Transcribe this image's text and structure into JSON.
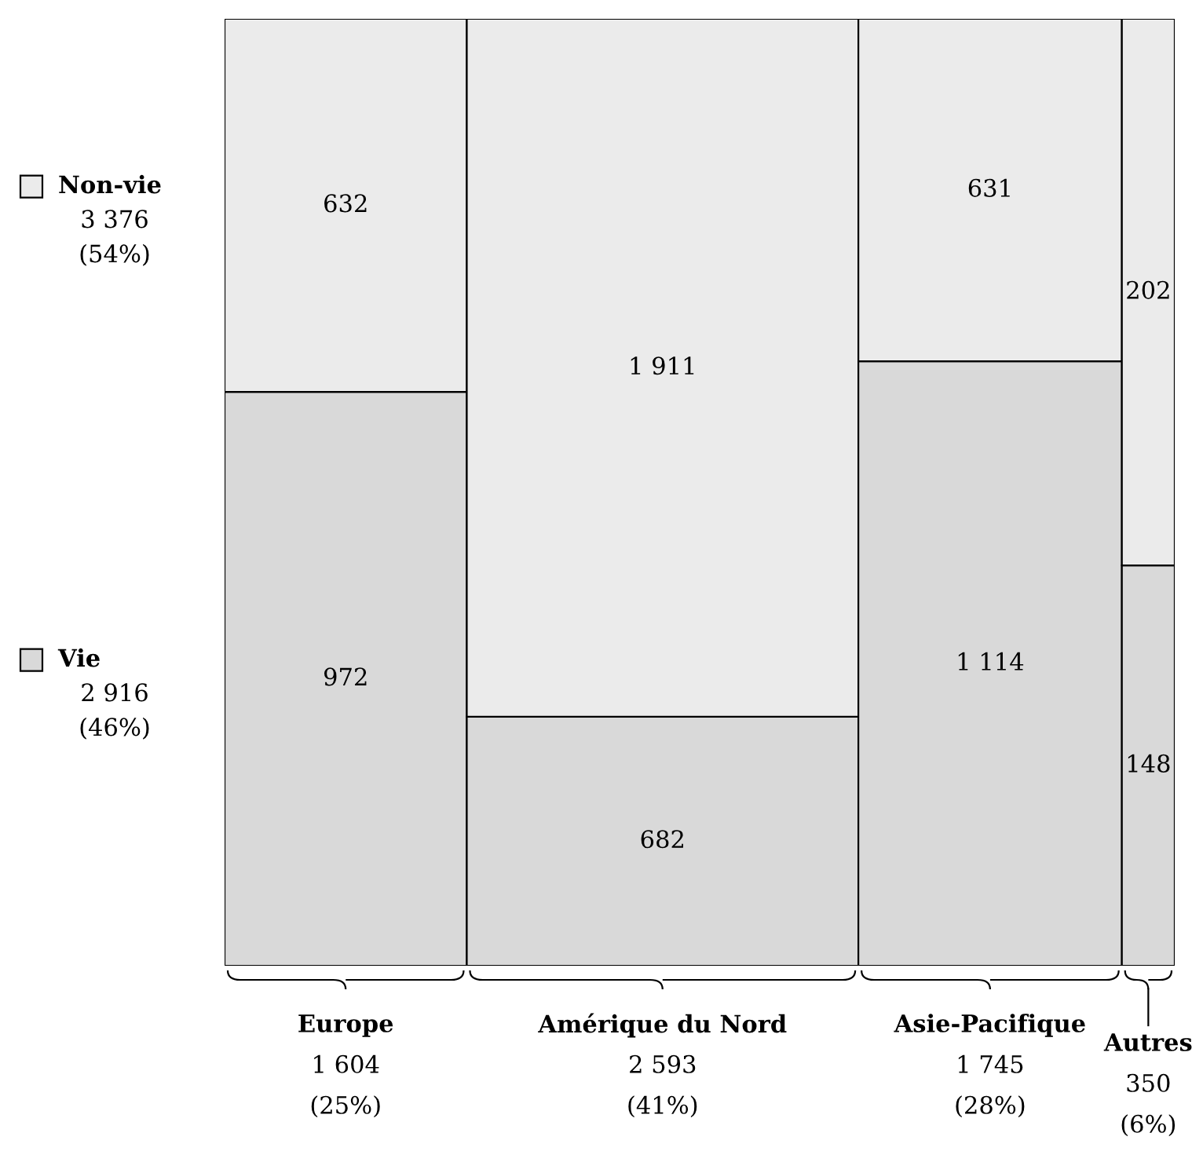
{
  "chart_data": {
    "type": "other",
    "categories": [
      "Europe\n1 604\n(25%)",
      "Amérique du Nord\n2 593\n(41%)",
      "Asie-Pacifique\n1 745\n(28%)",
      "Autres\n350\n(6%)"
    ],
    "series": [
      {
        "name": "Vie\n2 916\n(46%)",
        "color": "#d9d9d9",
        "values": [
          972,
          682,
          1114,
          148
        ],
        "value_labels": [
          "972",
          "682",
          "1 114",
          "148"
        ]
      },
      {
        "name": "Non-vie\n3 376\n(54%)",
        "color": "#ebebeb",
        "values": [
          632,
          1911,
          631,
          202
        ],
        "value_labels": [
          "632",
          "1 911",
          "631",
          "202"
        ]
      }
    ],
    "legend": "left"
  }
}
